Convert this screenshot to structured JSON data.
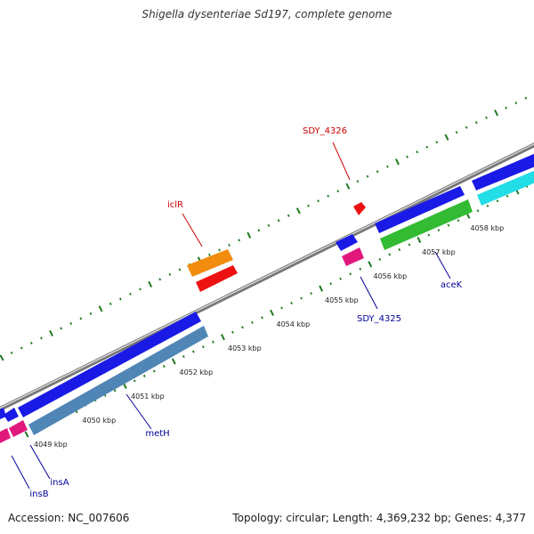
{
  "title": "Shigella dysenteriae Sd197, complete genome",
  "accession": "Accession: NC_007606",
  "topology": "Topology: circular; Length: 4,369,232 bp; Genes: 4,377",
  "colors": {
    "backbone": "#8c8c8c",
    "tick": "#1f7a1f",
    "label_red": "#cc0000",
    "label_blue": "#000099",
    "kbp_label": "#222222"
  },
  "scale_labels": [
    "4049 kbp",
    "4050 kbp",
    "4051 kbp",
    "4052 kbp",
    "4053 kbp",
    "4054 kbp",
    "4055 kbp",
    "4056 kbp",
    "4057 kbp",
    "4058 kbp"
  ],
  "gene_labels": {
    "sdy4326": "SDY_4326",
    "iclr": "iclR",
    "sdy4325": "SDY_4325",
    "acek": "aceK",
    "meth": "metH",
    "insa": "insA",
    "insb": "insB"
  },
  "features": [
    {
      "name": "insB",
      "color": "#e0187c"
    },
    {
      "name": "insA",
      "color": "#e0187c"
    },
    {
      "name": "metH-forward",
      "color": "#1a1ae6"
    },
    {
      "name": "metH",
      "color": "#4f86b6"
    },
    {
      "name": "iclR",
      "color": "#f28c0f"
    },
    {
      "name": "iclR-partner",
      "color": "#ee1111"
    },
    {
      "name": "SDY_4326",
      "color": "#ee1111"
    },
    {
      "name": "SDY_4325-forward",
      "color": "#1a1ae6"
    },
    {
      "name": "SDY_4325",
      "color": "#e0187c"
    },
    {
      "name": "aceB",
      "color": "#1a1ae6"
    },
    {
      "name": "aceK-partner",
      "color": "#33bb33"
    },
    {
      "name": "aceA",
      "color": "#1a1ae6"
    },
    {
      "name": "aceK",
      "color": "#22dde6"
    }
  ]
}
